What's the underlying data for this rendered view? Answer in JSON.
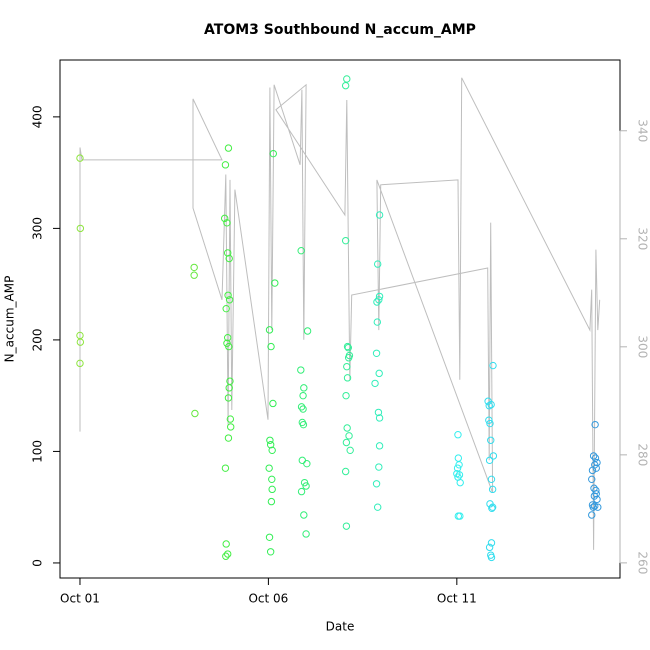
{
  "chart_data": {
    "type": "scatter",
    "title": "ATOM3 Southbound N_accum_AMP",
    "x_label": "Date",
    "y_label": "N_accum_AMP",
    "xlim": [
      -0.53,
      14.33
    ],
    "ylim": [
      -13.5,
      451
    ],
    "y2lim": [
      257.2,
      353.1
    ],
    "xticks": [
      {
        "value": 0,
        "label": "Oct 01"
      },
      {
        "value": 5,
        "label": "Oct 06"
      },
      {
        "value": 10,
        "label": "Oct 11"
      }
    ],
    "yticks": [
      0,
      100,
      200,
      300,
      400
    ],
    "y2ticks": [
      260,
      280,
      300,
      320,
      340
    ],
    "y2_color": "#b3b3b3",
    "series": [
      {
        "style": "line",
        "axis": "y2",
        "color": "#bebebe",
        "x": [
          0,
          0,
          0.05,
          3.77,
          3.0,
          3.0,
          3.77,
          3.87,
          3.93,
          3.98,
          4.03,
          4.11,
          4.99,
          5.04,
          5.09,
          5.15,
          5.84,
          5.89,
          5.94,
          6.0,
          5.2,
          7.03,
          7.08,
          7.16,
          7.21,
          10.82,
          10.86,
          10.9,
          10.95,
          7.88,
          7.93,
          7.98,
          10.03,
          10.08,
          10.13,
          13.53,
          13.58,
          13.63,
          13.69,
          13.74,
          13.79
        ],
        "values": [
          284.3,
          336.9,
          334.6,
          334.6,
          345.9,
          325.7,
          308.7,
          331.9,
          285.6,
          330.9,
          288.3,
          329.1,
          286.5,
          348.0,
          303.1,
          348.5,
          333.7,
          347.6,
          301.3,
          348.5,
          343.9,
          324.4,
          345.7,
          293.9,
          309.6,
          314.6,
          279.0,
          323.0,
          273.0,
          330.9,
          303.1,
          330.0,
          330.9,
          293.9,
          349.8,
          303.1,
          310.6,
          262.4,
          318.0,
          303.1,
          308.7
        ]
      },
      {
        "style": "points",
        "color": "#8ee53f",
        "x": [
          0,
          0.01,
          0,
          0.01,
          0
        ],
        "values": [
          363,
          300,
          204,
          198,
          179
        ]
      },
      {
        "style": "points",
        "color": "#66e83f",
        "x": [
          3.03,
          3.03,
          3.05
        ],
        "values": [
          265,
          258,
          134
        ]
      },
      {
        "style": "points",
        "color": "#44ee44",
        "x": [
          3.94,
          3.86,
          3.84,
          3.9,
          3.92,
          3.96,
          3.93,
          3.97,
          3.88,
          3.92,
          3.9,
          3.95,
          3.98,
          3.96,
          3.94,
          3.99,
          4.0,
          3.94,
          3.86,
          3.88,
          3.92,
          3.87
        ],
        "values": [
          372,
          357,
          309,
          305,
          278,
          273,
          240,
          236,
          228,
          202,
          197,
          194,
          163,
          157,
          148,
          129,
          122,
          112,
          85,
          17,
          8,
          6
        ]
      },
      {
        "style": "points",
        "color": "#33ee55",
        "x": [
          5.13,
          5.17,
          5.03,
          5.07,
          5.12,
          5.04,
          5.06,
          5.1,
          5.02,
          5.09,
          5.1,
          5.08,
          5.03,
          5.06
        ],
        "values": [
          367,
          251,
          209,
          194,
          143,
          110,
          106,
          101,
          85,
          75,
          66,
          55,
          23,
          10
        ]
      },
      {
        "style": "points",
        "color": "#33ee77",
        "x": [
          5.87,
          6.04,
          5.86,
          5.94,
          5.92,
          5.88,
          5.92,
          5.9,
          5.93,
          5.9,
          6.02,
          5.96,
          6.0,
          5.88,
          5.94,
          6.0
        ],
        "values": [
          280,
          208,
          173,
          157,
          150,
          140,
          138,
          126,
          124,
          92,
          89,
          72,
          69,
          64,
          43,
          26
        ]
      },
      {
        "style": "points",
        "color": "#33ee99",
        "x": [
          7.08,
          7.05,
          7.05,
          7.1,
          7.12,
          7.15,
          7.13,
          7.08,
          7.1,
          7.06,
          7.09,
          7.14,
          7.07,
          7.17,
          7.05,
          7.07
        ],
        "values": [
          434,
          428,
          289,
          194,
          193,
          186,
          184,
          176,
          166,
          150,
          121,
          114,
          108,
          101,
          82,
          33
        ]
      },
      {
        "style": "points",
        "color": "#33eebb",
        "x": [
          7.95,
          7.9,
          7.95,
          7.93,
          7.88,
          7.89,
          7.87,
          7.94,
          7.83,
          7.92,
          7.95,
          7.95,
          7.93,
          7.87,
          7.9
        ],
        "values": [
          312,
          268,
          239,
          236,
          234,
          216,
          188,
          170,
          161,
          135,
          130,
          105,
          86,
          71,
          50
        ]
      },
      {
        "style": "points",
        "color": "#33eeee",
        "x": [
          10.03,
          10.04,
          10.06,
          10.02,
          10.0,
          10.07,
          10.03,
          10.09,
          10.04,
          10.08
        ],
        "values": [
          115,
          94,
          88,
          85,
          80,
          79,
          77,
          72,
          42,
          42
        ]
      },
      {
        "style": "points",
        "color": "#33ddee",
        "x": [
          10.96,
          10.83,
          10.91,
          10.86,
          10.85,
          10.88,
          10.9,
          10.97,
          10.87,
          10.92,
          10.95,
          10.88,
          10.93,
          10.95,
          10.92,
          10.87,
          10.9,
          10.92
        ],
        "values": [
          177,
          145,
          142,
          141,
          128,
          125,
          110,
          96,
          92,
          75,
          66,
          53,
          49,
          50,
          18,
          14,
          7,
          5
        ]
      },
      {
        "style": "points",
        "color": "#3399dd",
        "x": [
          13.67,
          13.63,
          13.68,
          13.72,
          13.66,
          13.7,
          13.6,
          13.58,
          13.64,
          13.69,
          13.7,
          13.65,
          13.72,
          13.6,
          13.66,
          13.74,
          13.62,
          13.58
        ],
        "values": [
          124,
          96,
          94,
          90,
          88,
          85,
          83,
          75,
          67,
          65,
          62,
          60,
          57,
          52,
          51,
          50,
          50,
          43
        ]
      }
    ]
  }
}
